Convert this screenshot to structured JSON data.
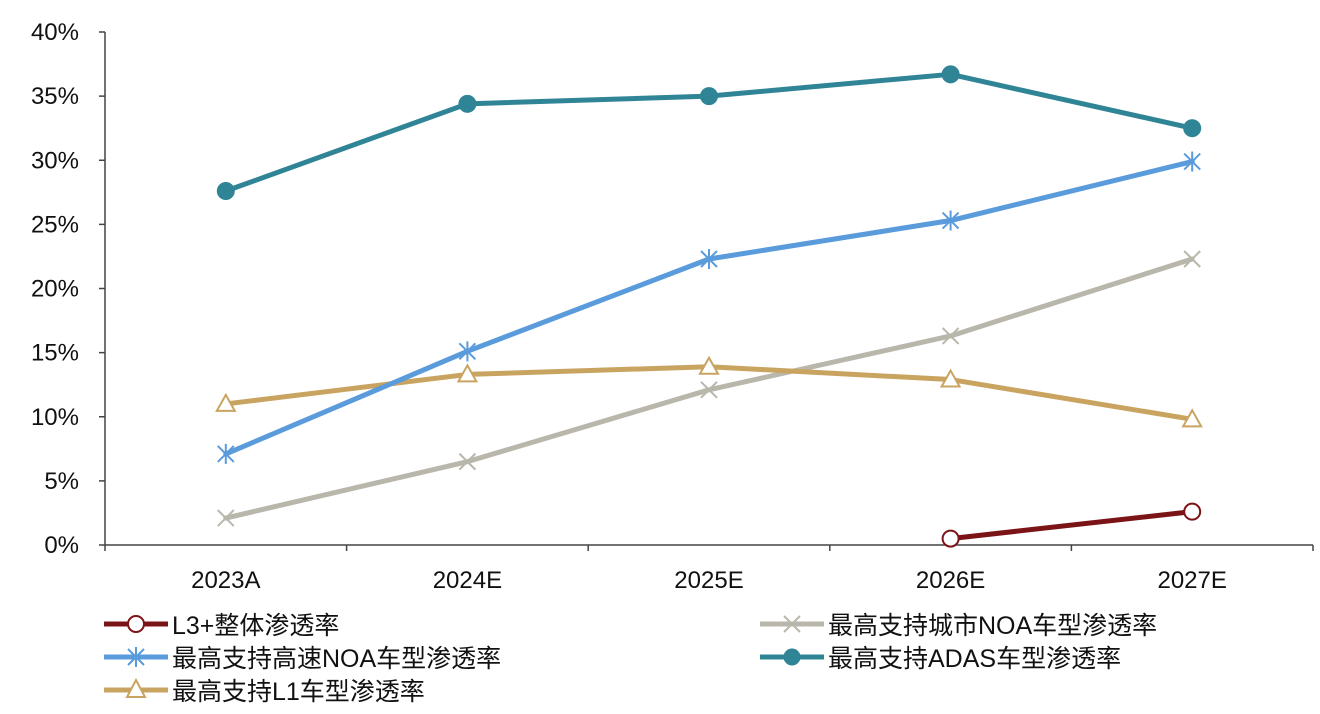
{
  "chart_data": {
    "type": "line",
    "categories": [
      "2023A",
      "2024E",
      "2025E",
      "2026E",
      "2027E"
    ],
    "ylim": [
      0,
      40
    ],
    "yticks": [
      0,
      5,
      10,
      15,
      20,
      25,
      30,
      35,
      40
    ],
    "ytick_labels": [
      "0%",
      "5%",
      "10%",
      "15%",
      "20%",
      "25%",
      "30%",
      "35%",
      "40%"
    ],
    "xlabel": "",
    "ylabel": "",
    "title": "",
    "legend_position": "bottom",
    "series": [
      {
        "name": "L3+整体渗透率",
        "color": "#7B1416",
        "marker": "circle-open",
        "values": [
          null,
          null,
          null,
          0.5,
          2.6
        ]
      },
      {
        "name": "最高支持城市NOA车型渗透率",
        "color": "#B9B7AB",
        "marker": "x",
        "values": [
          2.1,
          6.5,
          12.1,
          16.3,
          22.3
        ]
      },
      {
        "name": "最高支持高速NOA车型渗透率",
        "color": "#5A9BDC",
        "marker": "asterisk",
        "values": [
          7.1,
          15.1,
          22.3,
          25.3,
          29.9
        ]
      },
      {
        "name": "最高支持ADAS车型渗透率",
        "color": "#2F8496",
        "marker": "circle-filled",
        "values": [
          27.6,
          34.4,
          35.0,
          36.7,
          32.5
        ]
      },
      {
        "name": "最高支持L1车型渗透率",
        "color": "#C9A461",
        "marker": "triangle-open",
        "values": [
          11.0,
          13.3,
          13.9,
          12.9,
          9.8
        ]
      }
    ]
  }
}
